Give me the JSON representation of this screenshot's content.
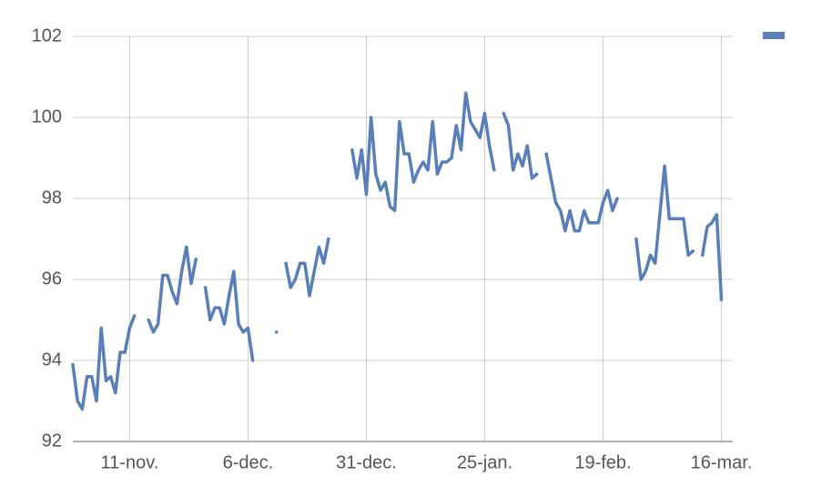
{
  "chart_data": {
    "type": "line",
    "categories": [
      null,
      null,
      null,
      null,
      null,
      null,
      null,
      null,
      null,
      null,
      null,
      null,
      "11-nov.",
      null,
      null,
      null,
      null,
      null,
      null,
      null,
      null,
      null,
      null,
      null,
      null,
      null,
      null,
      null,
      null,
      null,
      null,
      null,
      null,
      null,
      null,
      null,
      null,
      "6-dec.",
      null,
      null,
      null,
      null,
      null,
      null,
      null,
      null,
      null,
      null,
      null,
      null,
      null,
      null,
      null,
      null,
      null,
      null,
      null,
      null,
      null,
      null,
      null,
      null,
      "31-dec.",
      null,
      null,
      null,
      null,
      null,
      null,
      null,
      null,
      null,
      null,
      null,
      null,
      null,
      null,
      null,
      null,
      null,
      null,
      null,
      null,
      null,
      null,
      null,
      null,
      "25-jan.",
      null,
      null,
      null,
      null,
      null,
      null,
      null,
      null,
      null,
      null,
      null,
      null,
      null,
      null,
      null,
      null,
      null,
      null,
      null,
      null,
      null,
      null,
      null,
      null,
      "19-feb.",
      null,
      null,
      null,
      null,
      null,
      null,
      null,
      null,
      null,
      null,
      null,
      null,
      null,
      null,
      null,
      null,
      null,
      null,
      null,
      null,
      null,
      null,
      null,
      null,
      "16-mar."
    ],
    "series": [
      {
        "color": "#5a7fb8",
        "values": [
          93.9,
          93.0,
          92.8,
          93.6,
          93.6,
          93.0,
          94.8,
          93.5,
          93.6,
          93.2,
          94.2,
          94.2,
          94.8,
          95.1,
          null,
          null,
          95.0,
          94.7,
          94.9,
          96.1,
          96.1,
          95.7,
          95.4,
          96.2,
          96.8,
          95.9,
          96.5,
          null,
          95.8,
          95.0,
          95.3,
          95.3,
          94.9,
          95.6,
          96.2,
          94.9,
          94.7,
          94.8,
          94.0,
          null,
          null,
          null,
          null,
          94.7,
          null,
          96.4,
          95.8,
          96.0,
          96.4,
          96.4,
          95.6,
          96.2,
          96.8,
          96.4,
          97.0,
          null,
          null,
          null,
          null,
          99.2,
          98.5,
          99.2,
          98.1,
          100.0,
          98.6,
          98.2,
          98.4,
          97.8,
          97.7,
          99.9,
          99.1,
          99.1,
          98.4,
          98.7,
          98.9,
          98.7,
          99.9,
          98.6,
          98.9,
          98.9,
          99.0,
          99.8,
          99.2,
          100.6,
          99.9,
          99.7,
          99.5,
          100.1,
          99.3,
          98.7,
          null,
          100.1,
          99.8,
          98.7,
          99.1,
          98.8,
          99.3,
          98.5,
          98.6,
          null,
          99.1,
          98.5,
          97.9,
          97.7,
          97.2,
          97.7,
          97.2,
          97.2,
          97.7,
          97.4,
          97.4,
          97.4,
          97.9,
          98.2,
          97.7,
          98.0,
          null,
          null,
          null,
          97.0,
          96.0,
          96.2,
          96.6,
          96.4,
          97.6,
          98.8,
          97.5,
          97.5,
          97.5,
          97.5,
          96.6,
          96.7,
          null,
          96.6,
          97.3,
          97.4,
          97.6,
          95.5
        ]
      }
    ],
    "ylim": [
      92,
      102
    ],
    "yticks": [
      92,
      94,
      96,
      98,
      100,
      102
    ],
    "grid": true
  }
}
